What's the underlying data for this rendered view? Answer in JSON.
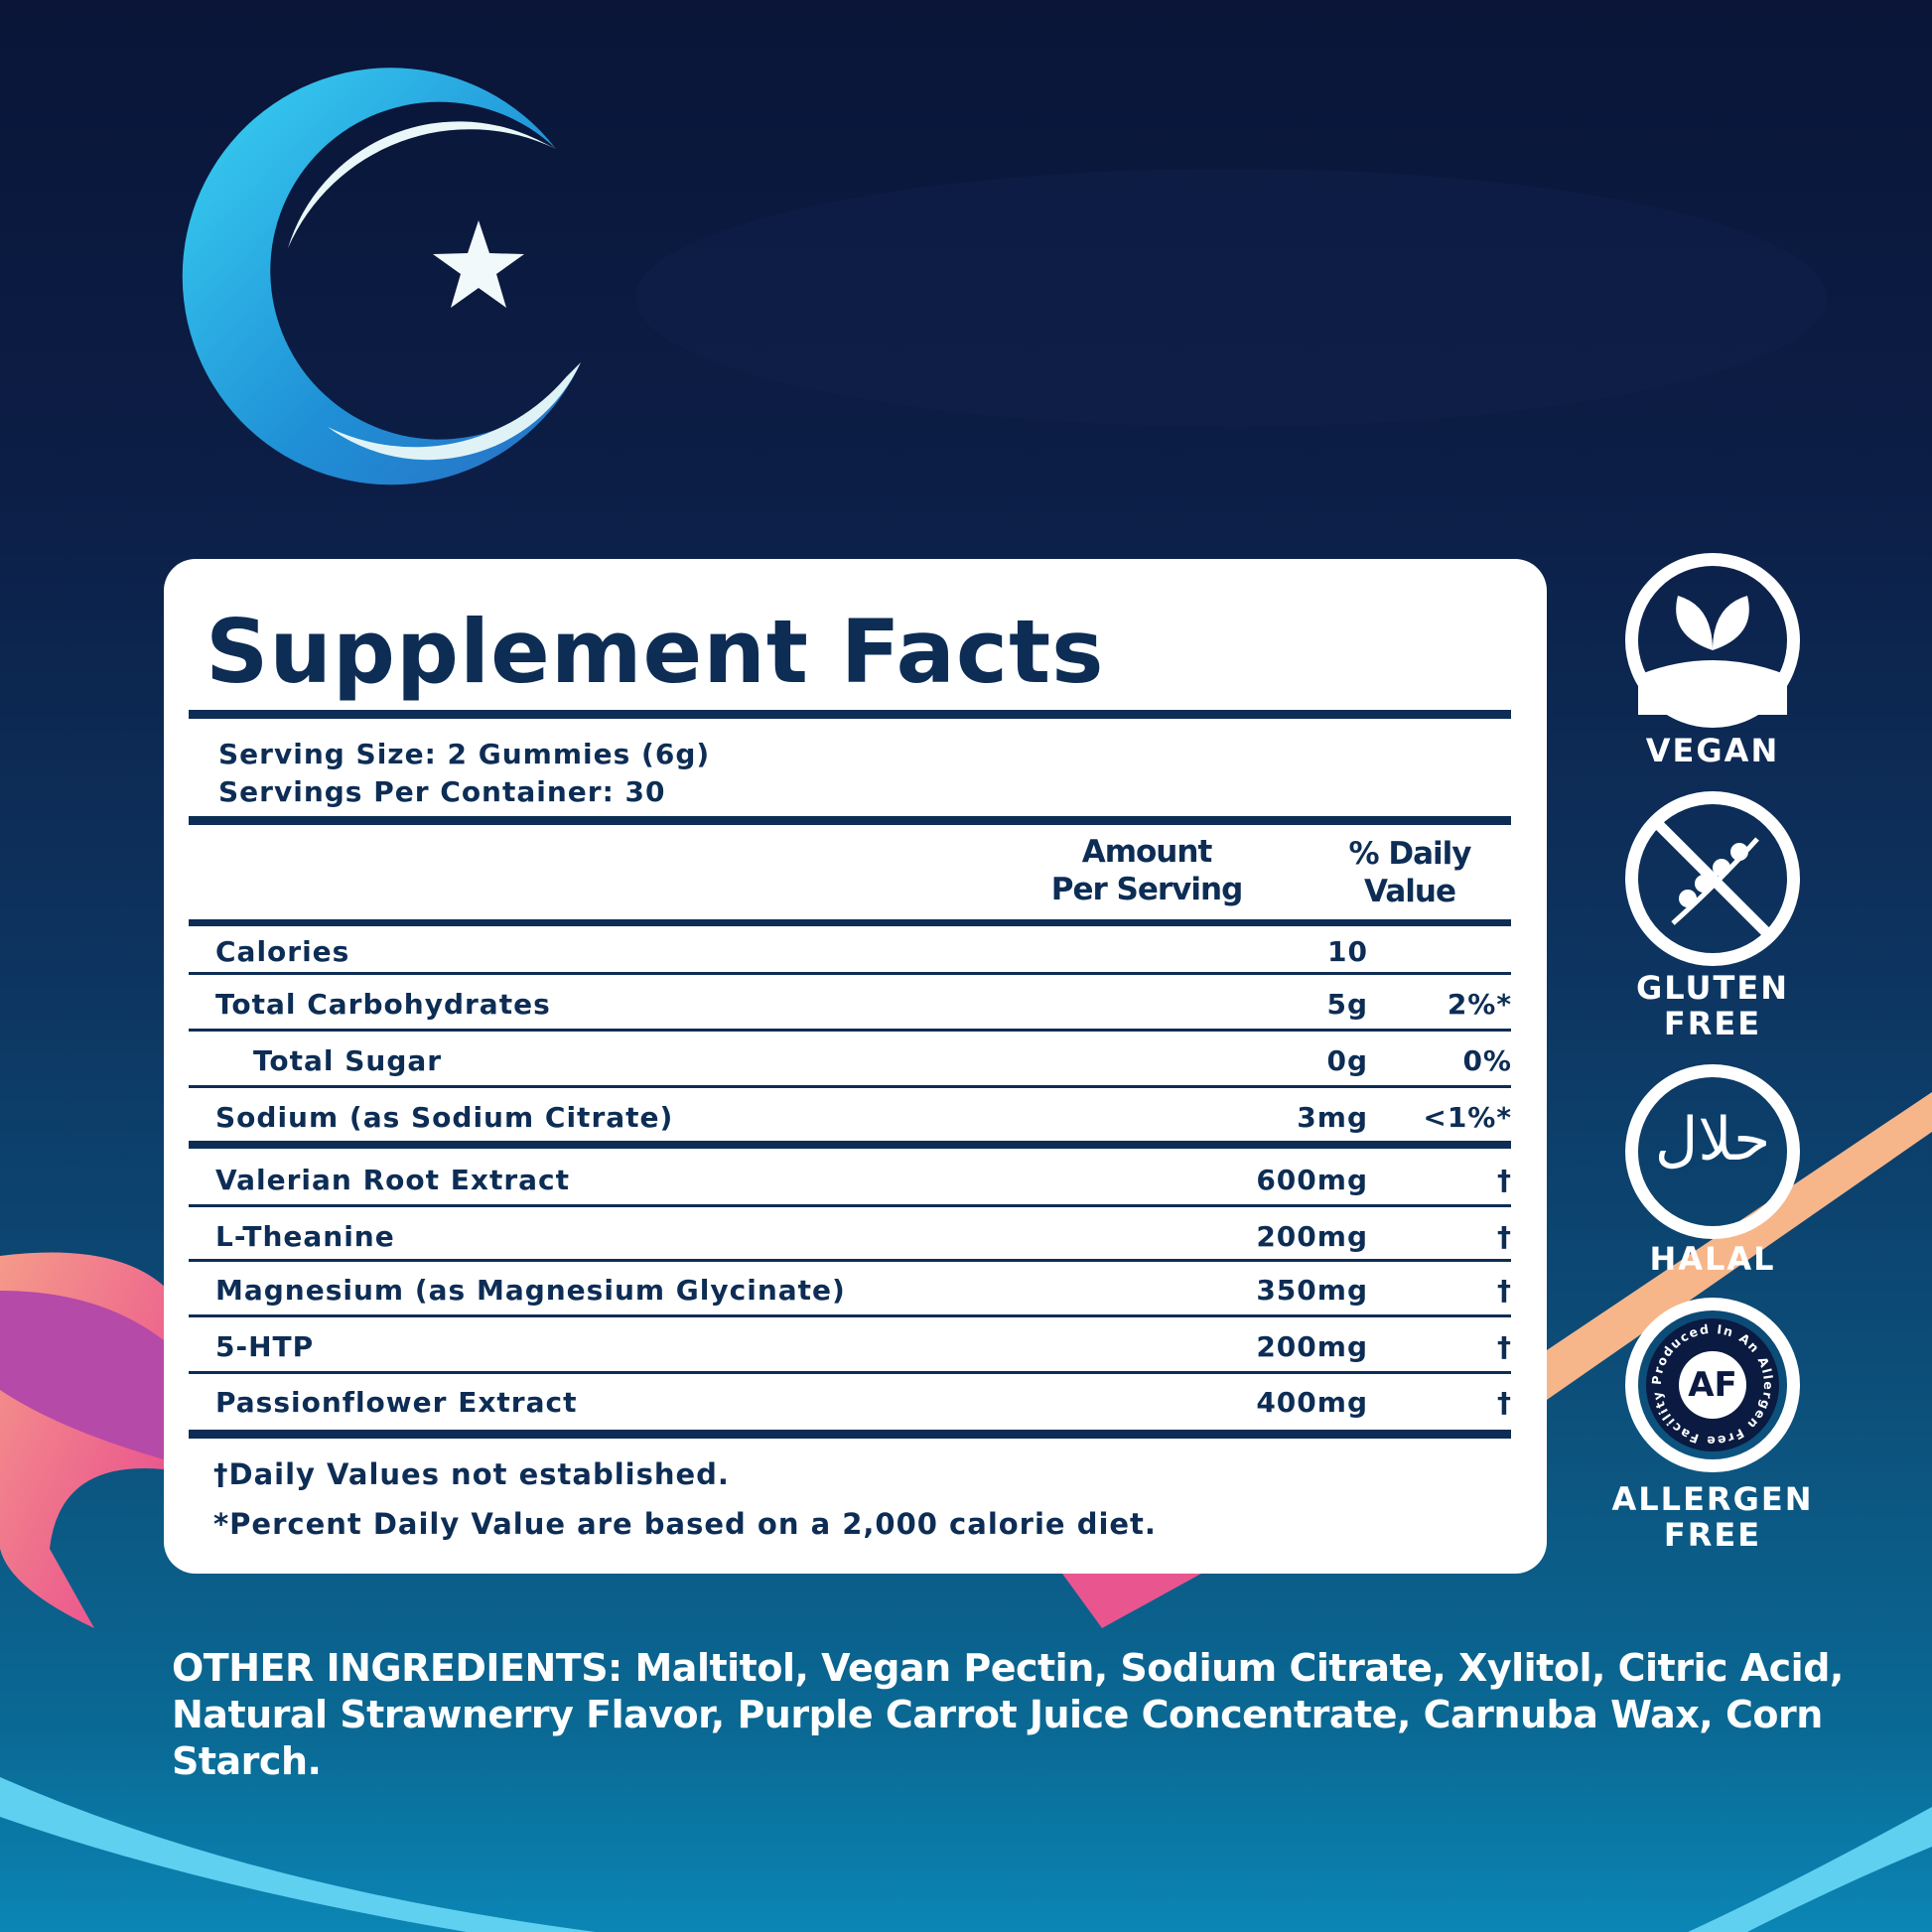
{
  "panel": {
    "title": "Supplement Facts",
    "serving_size": "Serving Size: 2 Gummies (6g)",
    "servings_per_container": "Servings Per Container: 30",
    "header_amount_1": "Amount",
    "header_amount_2": "Per Serving",
    "header_dv_1": "% Daily",
    "header_dv_2": "Value",
    "rows": [
      {
        "name": "Calories",
        "amount": "10",
        "dv": ""
      },
      {
        "name": "Total Carbohydrates",
        "amount": "5g",
        "dv": "2%*"
      },
      {
        "name": "Total Sugar",
        "amount": "0g",
        "dv": "0%"
      },
      {
        "name": "Sodium (as Sodium Citrate)",
        "amount": "3mg",
        "dv": "<1%*"
      },
      {
        "name": "Valerian Root Extract",
        "amount": "600mg",
        "dv": "†"
      },
      {
        "name": "L-Theanine",
        "amount": "200mg",
        "dv": "†"
      },
      {
        "name": "Magnesium (as Magnesium Glycinate)",
        "amount": "350mg",
        "dv": "†"
      },
      {
        "name": "5-HTP",
        "amount": "200mg",
        "dv": "†"
      },
      {
        "name": "Passionflower Extract",
        "amount": "400mg",
        "dv": "†"
      }
    ],
    "footnote_1": "†Daily Values not established.",
    "footnote_2": "*Percent Daily Value are based on a 2,000 calorie diet."
  },
  "badges": [
    {
      "label_1": "VEGAN",
      "label_2": "",
      "icon": "leaf-icon"
    },
    {
      "label_1": "GLUTEN",
      "label_2": "FREE",
      "icon": "no-wheat-icon"
    },
    {
      "label_1": "HALAL",
      "label_2": "",
      "icon": "halal-icon",
      "glyph": "حلال"
    },
    {
      "label_1": "ALLERGEN",
      "label_2": "FREE",
      "icon": "allergen-free-icon",
      "inner": "AF",
      "ring_text": "Produced In An Allergen Free Facility"
    }
  ],
  "other_ingredients": {
    "label": "OTHER INGREDIENTS:",
    "text": " Maltitol, Vegan Pectin, Sodium Citrate, Xylitol, Citric Acid, Natural Strawnerry Flavor, Purple Carrot Juice Concentrate, Carnuba Wax, Corn Starch."
  },
  "colors": {
    "navy": "#0d2d55",
    "background": "#0a1538",
    "accent_peach": "#f6b68a",
    "accent_pink": "#e8558f",
    "accent_purple": "#b54aa8",
    "moon_blue": "#2bb6e6"
  }
}
